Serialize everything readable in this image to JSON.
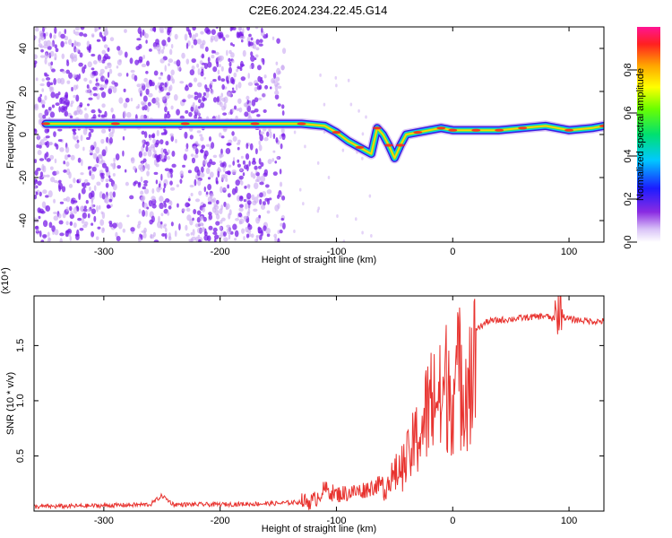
{
  "title": "C2E6.2024.234.22.45.G14",
  "colors": {
    "signal_line": "#e8332f",
    "scatter_main": "#7a1fe8",
    "scatter_light": "#c9a8f2"
  },
  "chart_data": [
    {
      "type": "heatmap",
      "xlabel": "Height of straight line (km)",
      "ylabel": "Frequency (Hz)",
      "xlim": [
        -360,
        130
      ],
      "ylim": [
        -50,
        50
      ],
      "xticks": [
        -300,
        -200,
        -100,
        0,
        100
      ],
      "yticks": [
        -40,
        -20,
        0,
        20,
        40
      ],
      "grid": false,
      "colorbar": {
        "label": "Normalized spectral amplitude",
        "range": [
          0,
          1
        ],
        "ticks": [
          "0.0",
          "0.2",
          "0.4",
          "0.6",
          "0.8"
        ],
        "colormap": "rainbow"
      },
      "ridge": {
        "description": "dominant frequency track",
        "x": [
          -350,
          -320,
          -290,
          -260,
          -230,
          -200,
          -170,
          -150,
          -130,
          -110,
          -100,
          -90,
          -80,
          -70,
          -65,
          -60,
          -55,
          -50,
          -45,
          -40,
          -30,
          -20,
          -10,
          0,
          20,
          40,
          60,
          80,
          100,
          120,
          130
        ],
        "y": [
          5,
          5,
          5,
          5,
          5,
          5,
          5,
          5,
          5,
          4,
          1,
          -3,
          -6,
          -9,
          3,
          0,
          -5,
          -11,
          -5,
          0,
          1,
          2,
          3,
          2,
          2,
          2,
          3,
          4,
          2,
          3,
          4
        ]
      },
      "noise_band": {
        "x_range": [
          -360,
          -145
        ],
        "density": "high"
      }
    },
    {
      "type": "line",
      "xlabel": "Height of straight line (km)",
      "ylabel": "SNR (10 * v/v)",
      "y_multiplier": "(x10⁴)",
      "xlim": [
        -360,
        130
      ],
      "ylim": [
        0,
        1.95
      ],
      "xticks": [
        -300,
        -200,
        -100,
        0,
        100
      ],
      "yticks": [
        0.5,
        1.0,
        1.5
      ],
      "ytick_labels": [
        "0.5",
        "1.0",
        "1.5"
      ],
      "grid": false,
      "series": [
        {
          "x": [
            -360,
            -300,
            -260,
            -250,
            -240,
            -200,
            -150,
            -120,
            -110,
            -100,
            -80,
            -60,
            -50,
            -40,
            -35,
            -30,
            -25,
            -20,
            -15,
            -10,
            -5,
            0,
            5,
            10,
            15,
            20,
            25,
            30,
            40,
            60,
            80,
            90,
            92,
            95,
            100,
            120,
            130
          ],
          "y": [
            0.04,
            0.05,
            0.06,
            0.14,
            0.06,
            0.06,
            0.07,
            0.09,
            0.2,
            0.15,
            0.18,
            0.25,
            0.4,
            0.55,
            0.7,
            0.85,
            1.0,
            1.2,
            1.35,
            1.2,
            1.45,
            1.38,
            1.52,
            1.48,
            1.6,
            1.65,
            1.68,
            1.72,
            1.73,
            1.75,
            1.77,
            1.72,
            1.95,
            1.76,
            1.74,
            1.72,
            1.72
          ]
        }
      ]
    }
  ]
}
